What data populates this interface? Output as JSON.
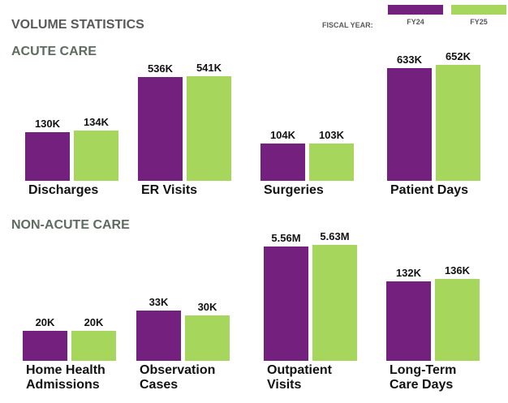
{
  "title": "VOLUME STATISTICS",
  "fiscal_year_label": "FISCAL YEAR:",
  "series": [
    {
      "name": "FY24",
      "color": "#74207f"
    },
    {
      "name": "FY25",
      "color": "#a6d65c"
    }
  ],
  "sections": [
    "ACUTE CARE",
    "NON-ACUTE CARE"
  ],
  "chart_data": [
    {
      "type": "bar",
      "title": "Discharges",
      "values": [
        130000,
        134000
      ],
      "value_labels": [
        "130K",
        "134K"
      ],
      "ylim": [
        0,
        325000
      ]
    },
    {
      "type": "bar",
      "title": "ER Visits",
      "values": [
        536000,
        541000
      ],
      "value_labels": [
        "536K",
        "541K"
      ],
      "ylim": [
        0,
        628000
      ]
    },
    {
      "type": "bar",
      "title": "Surgeries",
      "values": [
        104000,
        103000
      ],
      "value_labels": [
        "104K",
        "103K"
      ],
      "ylim": [
        0,
        339000
      ]
    },
    {
      "type": "bar",
      "title": "Patient Days",
      "values": [
        633000,
        652000
      ],
      "value_labels": [
        "633K",
        "652K"
      ],
      "ylim": [
        0,
        683000
      ]
    },
    {
      "type": "bar",
      "title": "Home Health\nAdmissions",
      "values": [
        20000,
        20000
      ],
      "value_labels": [
        "20K",
        "20K"
      ],
      "ylim": [
        0,
        81000
      ]
    },
    {
      "type": "bar",
      "title": "Observation\nCases",
      "values": [
        33000,
        30000
      ],
      "value_labels": [
        "33K",
        "30K"
      ],
      "ylim": [
        0,
        80000
      ]
    },
    {
      "type": "bar",
      "title": "Outpatient\nVisits",
      "values": [
        5560000,
        5630000
      ],
      "value_labels": [
        "5.56M",
        "5.63M"
      ],
      "ylim": [
        0,
        5900000
      ]
    },
    {
      "type": "bar",
      "title": "Long-Term\nCare Days",
      "values": [
        132000,
        136000
      ],
      "value_labels": [
        "132K",
        "136K"
      ],
      "ylim": [
        0,
        202000
      ]
    }
  ]
}
